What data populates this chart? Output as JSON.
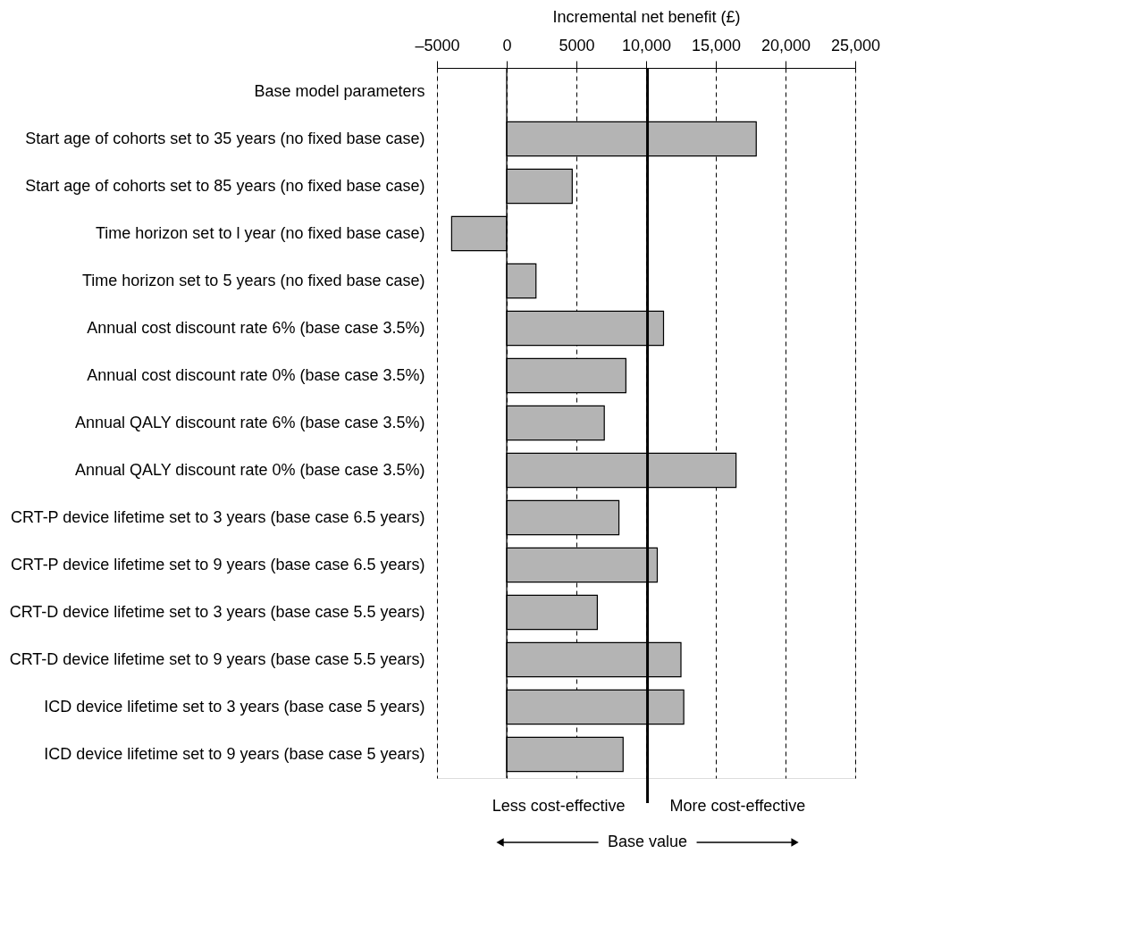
{
  "chart_data": {
    "type": "bar",
    "orientation": "horizontal",
    "xlabel": "Incremental net benefit (£)",
    "categories": [
      "Base model parameters",
      "Start age of cohorts set to 35 years (no fixed base case)",
      "Start age of cohorts set to 85 years (no fixed base case)",
      "Time horizon set to l year (no fixed base case)",
      "Time horizon set to 5 years (no fixed base case)",
      "Annual cost discount rate 6% (base case 3.5%)",
      "Annual cost discount rate 0% (base case 3.5%)",
      "Annual QALY discount rate 6% (base case 3.5%)",
      "Annual QALY discount rate 0% (base case 3.5%)",
      "CRT-P device lifetime set to 3 years (base case 6.5 years)",
      "CRT-P device lifetime set to 9 years (base case 6.5 years)",
      "CRT-D device lifetime set to 3 years (base case 5.5 years)",
      "CRT-D device lifetime set to 9 years (base case 5.5 years)",
      "ICD device lifetime set to 3 years (base case 5 years)",
      "ICD device lifetime set to 9 years (base case 5 years)"
    ],
    "values": [
      null,
      17900,
      4700,
      -3950,
      2100,
      11250,
      8550,
      7000,
      16450,
      8050,
      10800,
      6500,
      12500,
      12700,
      8350
    ],
    "color": "#b4b4b4",
    "xlim": [
      -5000,
      25000
    ],
    "xticks": [
      {
        "value": -5000,
        "label": "–5000"
      },
      0,
      5000,
      {
        "value": 10000,
        "label": "10,000"
      },
      {
        "value": 15000,
        "label": "15,000"
      },
      {
        "value": 20000,
        "label": "20,000"
      },
      {
        "value": 25000,
        "label": "25,000"
      }
    ],
    "grid": "x",
    "line_style": "dashed",
    "ref_lines": [
      {
        "axis": "x",
        "value": 0,
        "color": "#000000",
        "line_style": "solid"
      },
      {
        "axis": "x",
        "value": 10100,
        "label": "Base value",
        "color": "#000000",
        "line_style": "solid"
      }
    ],
    "annotations": [
      "Less cost-effective",
      "More cost-effective"
    ]
  }
}
